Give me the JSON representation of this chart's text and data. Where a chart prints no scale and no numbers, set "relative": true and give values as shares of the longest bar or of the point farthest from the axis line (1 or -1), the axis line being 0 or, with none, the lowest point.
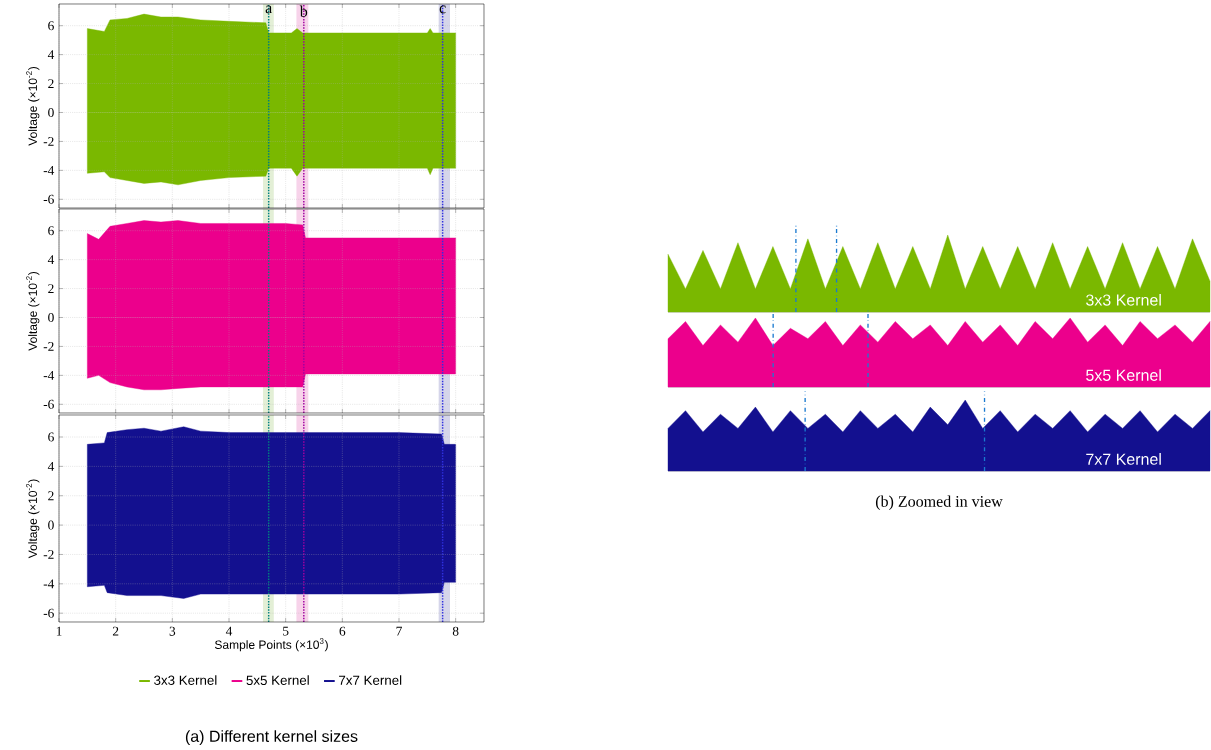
{
  "chart_data": [
    {
      "type": "area",
      "x": [
        1.5,
        1.8,
        1.9,
        2.2,
        2.5,
        2.8,
        3.1,
        3.5,
        4.0,
        4.65,
        4.7,
        5.1,
        5.2,
        5.3,
        6.0,
        7.0,
        7.5,
        7.55,
        7.6,
        8.0
      ],
      "series": [
        {
          "name": "3x3 Kernel",
          "color": "#7ab800",
          "values": [
            5.8,
            5.6,
            6.4,
            6.5,
            6.8,
            6.6,
            6.6,
            6.4,
            6.3,
            6.2,
            5.5,
            5.5,
            5.8,
            5.5,
            5.5,
            5.5,
            5.5,
            5.8,
            5.5,
            5.5
          ]
        },
        {
          "color": "#7ab800",
          "values": [
            -4.2,
            -4.1,
            -4.5,
            -4.7,
            -4.9,
            -4.8,
            -5.0,
            -4.7,
            -4.5,
            -4.4,
            -3.85,
            -3.85,
            -4.4,
            -3.85,
            -3.85,
            -3.85,
            -3.85,
            -4.3,
            -3.85,
            -3.85
          ]
        }
      ],
      "ylabel": "Voltage (×10$^{-2}$)",
      "xlim": [
        1,
        8.5
      ],
      "ylim": [
        -6.6,
        7.5
      ],
      "xticks": [
        1,
        2,
        3,
        4,
        5,
        6,
        7,
        8
      ],
      "yticks": [
        -6,
        -4,
        -2,
        0,
        2,
        4,
        6
      ],
      "grid": true,
      "tick_labels": "y",
      "bands": [
        {
          "axis": "x",
          "from": 4.6,
          "to": 4.79,
          "color": "#e3efd6"
        },
        {
          "axis": "x",
          "from": 5.19,
          "to": 5.4,
          "color": "#f7d3ea"
        },
        {
          "axis": "x",
          "from": 7.7,
          "to": 7.9,
          "color": "#d5d5ea"
        }
      ],
      "ref_lines": [
        {
          "axis": "x",
          "value": 4.7,
          "label": "a",
          "color": "#008080",
          "line_style": "dotted"
        },
        {
          "axis": "x",
          "value": 5.32,
          "label": "b",
          "color": "#a000a0",
          "line_style": "dotted"
        },
        {
          "axis": "x",
          "value": 7.77,
          "label": "c",
          "color": "#3030e0",
          "line_style": "dotted"
        }
      ]
    },
    {
      "type": "area",
      "x": [
        1.5,
        1.7,
        1.9,
        2.2,
        2.5,
        2.8,
        3.1,
        3.5,
        4.0,
        4.5,
        5.0,
        5.3,
        5.35,
        6.0,
        7.0,
        8.0
      ],
      "series": [
        {
          "name": "5x5 Kernel",
          "color": "#ec008c",
          "values": [
            5.8,
            5.4,
            6.3,
            6.5,
            6.7,
            6.6,
            6.7,
            6.5,
            6.5,
            6.5,
            6.5,
            6.4,
            5.5,
            5.5,
            5.5,
            5.5
          ]
        },
        {
          "color": "#ec008c",
          "values": [
            -4.2,
            -4.0,
            -4.5,
            -4.8,
            -5.0,
            -5.0,
            -4.9,
            -4.8,
            -4.8,
            -4.8,
            -4.8,
            -4.8,
            -3.9,
            -3.9,
            -3.9,
            -3.9
          ]
        }
      ],
      "ylabel": "Voltage (×10$^{-2}$)",
      "xlim": [
        1,
        8.5
      ],
      "ylim": [
        -6.6,
        7.5
      ],
      "xticks": [
        1,
        2,
        3,
        4,
        5,
        6,
        7,
        8
      ],
      "yticks": [
        -6,
        -4,
        -2,
        0,
        2,
        4,
        6
      ],
      "grid": true,
      "tick_labels": "y",
      "bands": [
        {
          "axis": "x",
          "from": 4.6,
          "to": 4.79,
          "color": "#e3efd6"
        },
        {
          "axis": "x",
          "from": 5.19,
          "to": 5.4,
          "color": "#f7d3ea"
        },
        {
          "axis": "x",
          "from": 7.7,
          "to": 7.9,
          "color": "#d5d5ea"
        }
      ],
      "ref_lines": [
        {
          "axis": "x",
          "value": 4.7,
          "color": "#008080",
          "line_style": "dotted"
        },
        {
          "axis": "x",
          "value": 5.32,
          "color": "#a000a0",
          "line_style": "dotted"
        },
        {
          "axis": "x",
          "value": 7.77,
          "color": "#3030e0",
          "line_style": "dotted"
        }
      ]
    },
    {
      "type": "area",
      "x": [
        1.5,
        1.8,
        1.85,
        2.2,
        2.5,
        2.8,
        3.2,
        3.5,
        4.0,
        5.0,
        6.0,
        7.0,
        7.75,
        7.8,
        8.0
      ],
      "series": [
        {
          "name": "7x7 Kernel",
          "color": "#13108f",
          "values": [
            5.5,
            5.6,
            6.3,
            6.5,
            6.6,
            6.4,
            6.7,
            6.4,
            6.3,
            6.3,
            6.3,
            6.3,
            6.2,
            5.5,
            5.5
          ]
        },
        {
          "color": "#13108f",
          "values": [
            -4.2,
            -4.1,
            -4.6,
            -4.8,
            -4.8,
            -4.8,
            -5.0,
            -4.7,
            -4.7,
            -4.7,
            -4.7,
            -4.7,
            -4.6,
            -3.9,
            -3.9
          ]
        }
      ],
      "ylabel": "Voltage (×10$^{-2}$)",
      "xlabel": "Sample Points (×10$^{3}$)",
      "xlim": [
        1,
        8.5
      ],
      "ylim": [
        -6.6,
        7.5
      ],
      "xticks": [
        1,
        2,
        3,
        4,
        5,
        6,
        7,
        8
      ],
      "yticks": [
        -6,
        -4,
        -2,
        0,
        2,
        4,
        6
      ],
      "grid": true,
      "legend": "bottom",
      "annotations": [
        "(a) Different kernel sizes"
      ],
      "bands": [
        {
          "axis": "x",
          "from": 4.6,
          "to": 4.79,
          "color": "#e3efd6"
        },
        {
          "axis": "x",
          "from": 5.19,
          "to": 5.4,
          "color": "#f7d3ea"
        },
        {
          "axis": "x",
          "from": 7.7,
          "to": 7.9,
          "color": "#d5d5ea"
        }
      ],
      "ref_lines": [
        {
          "axis": "x",
          "value": 4.7,
          "color": "#008080",
          "line_style": "dotted"
        },
        {
          "axis": "x",
          "value": 5.32,
          "color": "#a000a0",
          "line_style": "dotted"
        },
        {
          "axis": "x",
          "value": 7.77,
          "color": "#3030e0",
          "line_style": "dotted"
        }
      ]
    },
    {
      "type": "area",
      "relative": true,
      "categories": [
        null,
        null,
        null,
        null,
        null,
        null,
        null,
        null,
        null,
        null,
        null,
        null,
        null,
        null,
        null,
        null,
        null,
        null,
        null,
        null,
        null,
        null,
        null,
        null,
        null,
        null,
        null,
        null,
        null,
        null,
        null,
        null
      ],
      "series": [
        {
          "name": "3x3 Kernel",
          "color": "#7ab800",
          "values": [
            0.75,
            0.3,
            0.8,
            0.3,
            0.9,
            0.3,
            0.85,
            0.3,
            0.95,
            0.3,
            0.85,
            0.3,
            0.9,
            0.3,
            0.85,
            0.3,
            1.0,
            0.3,
            0.85,
            0.3,
            0.85,
            0.3,
            0.9,
            0.3,
            0.85,
            0.3,
            0.9,
            0.3,
            0.85,
            0.3,
            0.95,
            0.4
          ]
        }
      ]
    },
    {
      "type": "area",
      "relative": true,
      "categories": [
        null,
        null,
        null,
        null,
        null,
        null,
        null,
        null,
        null,
        null,
        null,
        null,
        null,
        null,
        null,
        null,
        null,
        null,
        null,
        null,
        null,
        null,
        null,
        null,
        null,
        null,
        null,
        null,
        null,
        null,
        null,
        null
      ],
      "series": [
        {
          "name": "5x5 Kernel",
          "color": "#ec008c",
          "values": [
            0.7,
            0.95,
            0.6,
            0.9,
            0.65,
            1.0,
            0.6,
            0.85,
            0.7,
            0.95,
            0.6,
            0.9,
            0.65,
            0.95,
            0.7,
            0.9,
            0.6,
            0.95,
            0.65,
            0.9,
            0.6,
            0.95,
            0.7,
            1.0,
            0.65,
            0.9,
            0.6,
            0.95,
            0.7,
            0.9,
            0.65,
            0.95
          ]
        }
      ]
    },
    {
      "type": "area",
      "relative": true,
      "categories": [
        null,
        null,
        null,
        null,
        null,
        null,
        null,
        null,
        null,
        null,
        null,
        null,
        null,
        null,
        null,
        null,
        null,
        null,
        null,
        null,
        null,
        null,
        null,
        null,
        null,
        null,
        null,
        null,
        null,
        null,
        null,
        null
      ],
      "series": [
        {
          "name": "7x7 Kernel",
          "color": "#13108f",
          "values": [
            0.6,
            0.85,
            0.55,
            0.8,
            0.6,
            0.9,
            0.55,
            0.85,
            0.6,
            0.8,
            0.55,
            0.85,
            0.6,
            0.8,
            0.55,
            0.9,
            0.65,
            1.0,
            0.6,
            0.85,
            0.55,
            0.8,
            0.6,
            0.85,
            0.55,
            0.8,
            0.6,
            0.85,
            0.55,
            0.8,
            0.6,
            0.85
          ]
        }
      ],
      "annotations": [
        "(b) Zoomed in view"
      ]
    }
  ]
}
